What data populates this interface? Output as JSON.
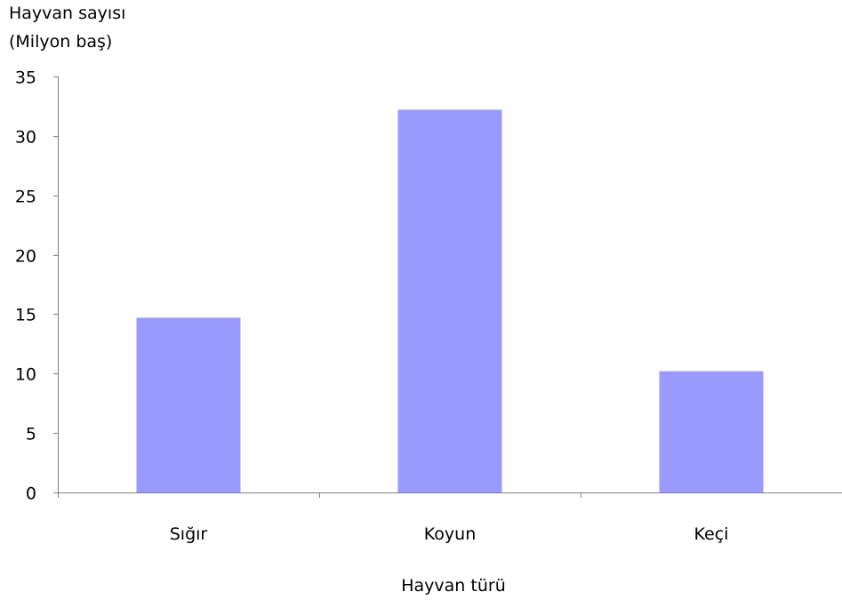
{
  "chart_data": {
    "type": "bar",
    "ylabel_lines": [
      "Hayvan sayısı",
      "(Milyon baş)"
    ],
    "xlabel": "Hayvan türü",
    "categories": [
      "Sığır",
      "Koyun",
      "Keçi"
    ],
    "values": [
      14.7,
      32.2,
      10.2
    ],
    "ylim": [
      0,
      35
    ],
    "yticks": [
      0,
      5,
      10,
      15,
      20,
      25,
      30,
      35
    ],
    "bar_color": "#9999ff",
    "axis_color": "#808080",
    "grid": false,
    "legend": "none"
  }
}
